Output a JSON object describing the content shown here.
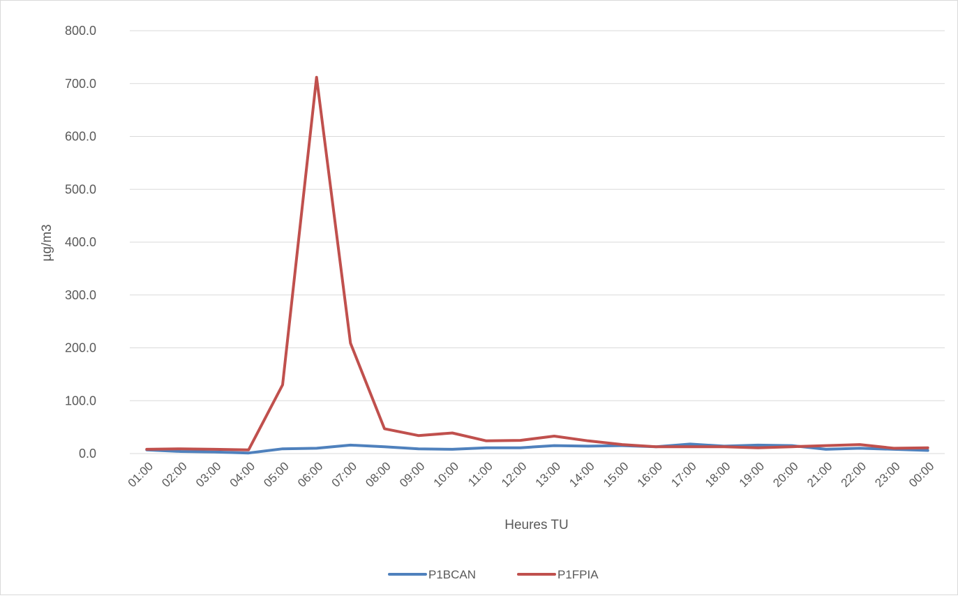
{
  "chart_data": {
    "type": "line",
    "title": "",
    "xlabel": "Heures TU",
    "ylabel": "µg/m3",
    "ylim": [
      0,
      800
    ],
    "y_ticks": [
      "0.0",
      "100.0",
      "200.0",
      "300.0",
      "400.0",
      "500.0",
      "600.0",
      "700.0",
      "800.0"
    ],
    "grid": true,
    "legend_position": "bottom",
    "categories": [
      "01:00",
      "02:00",
      "03:00",
      "04:00",
      "05:00",
      "06:00",
      "07:00",
      "08:00",
      "09:00",
      "10:00",
      "11:00",
      "12:00",
      "13:00",
      "14:00",
      "15:00",
      "16:00",
      "17:00",
      "18:00",
      "19:00",
      "20:00",
      "21:00",
      "22:00",
      "23:00",
      "00:00"
    ],
    "series": [
      {
        "name": "P1BCAN",
        "color": "#4f81bd",
        "values": [
          7,
          4,
          3,
          1,
          9,
          10,
          16,
          13,
          9,
          8,
          11,
          11,
          15,
          14,
          15,
          13,
          18,
          14,
          16,
          15,
          8,
          10,
          8,
          6
        ]
      },
      {
        "name": "P1FPIA",
        "color": "#c0504d",
        "values": [
          8,
          9,
          8,
          7,
          130,
          712,
          209,
          47,
          34,
          39,
          24,
          25,
          33,
          24,
          17,
          13,
          13,
          13,
          11,
          13,
          15,
          17,
          10,
          11
        ]
      }
    ]
  }
}
